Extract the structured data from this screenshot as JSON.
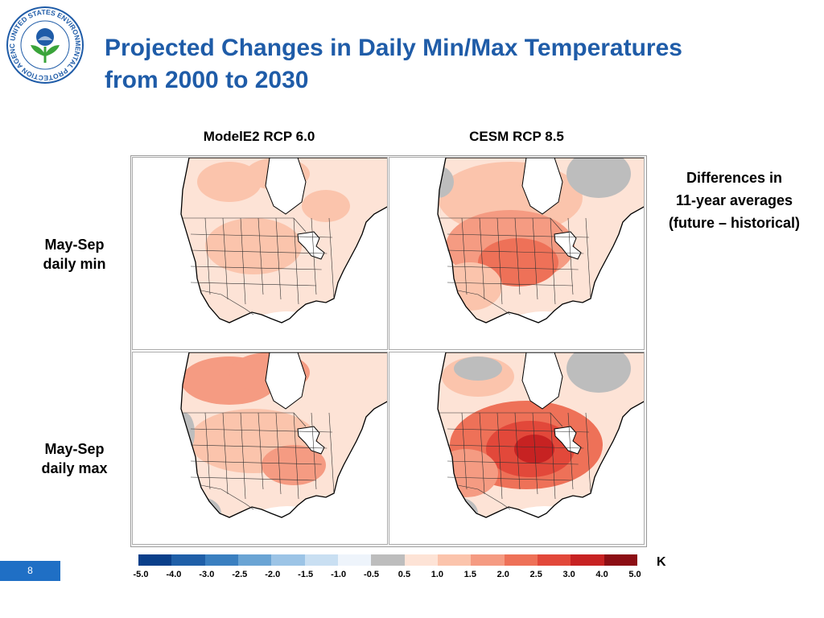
{
  "logo": {
    "ring_text": "UNITED STATES ENVIRONMENTAL PROTECTION AGENCY"
  },
  "title": {
    "line1": "Projected Changes in Daily Min/Max Temperatures",
    "line2": "from 2000 to 2030"
  },
  "columns": [
    {
      "label": "ModelE2 RCP 6.0"
    },
    {
      "label": "CESM RCP 8.5"
    }
  ],
  "rows": [
    {
      "line1": "May-Sep",
      "line2": "daily min"
    },
    {
      "line1": "May-Sep",
      "line2": "daily max"
    }
  ],
  "note": {
    "line1": "Differences in",
    "line2": "11-year averages",
    "line3": "(future – historical)"
  },
  "colorbar": {
    "unit": "K",
    "ticks": [
      "-5.0",
      "-4.0",
      "-3.0",
      "-2.5",
      "-2.0",
      "-1.5",
      "-1.0",
      "-0.5",
      "0.5",
      "1.0",
      "1.5",
      "2.0",
      "2.5",
      "3.0",
      "4.0",
      "5.0"
    ],
    "colors": [
      "#0a3f8a",
      "#1f5fa8",
      "#3a7fc0",
      "#6aa4d4",
      "#9cc4e6",
      "#c9dff2",
      "#eef4fb",
      "#bdbdbd",
      "#fde3d6",
      "#fbc4ac",
      "#f59b82",
      "#ee7158",
      "#e2483a",
      "#c72222",
      "#8c0e14"
    ]
  },
  "page": {
    "number": "8"
  },
  "panel_palette": {
    "gray": "#bdbdbd",
    "c1": "#fde3d6",
    "c2": "#fbc4ac",
    "c3": "#f59b82",
    "c4": "#ee7158",
    "c5": "#e2483a",
    "c6": "#c72222"
  }
}
